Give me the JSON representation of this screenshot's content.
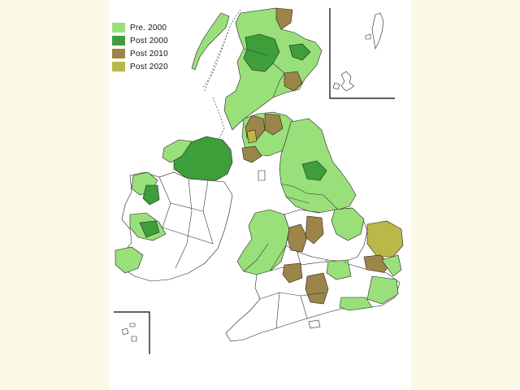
{
  "colors": {
    "pre_2000": "#99e07a",
    "post_2000": "#3e9e3a",
    "post_2010": "#9c8549",
    "post_2020": "#b9b848",
    "none": "#ffffff",
    "background": "#fbf8e6"
  },
  "legend": [
    {
      "label": "Pre.  2000",
      "color": "#99e07a"
    },
    {
      "label": "Post 2000",
      "color": "#3e9e3a"
    },
    {
      "label": "Post 2010",
      "color": "#9c8549"
    },
    {
      "label": "Post 2020",
      "color": "#b9b848"
    }
  ]
}
